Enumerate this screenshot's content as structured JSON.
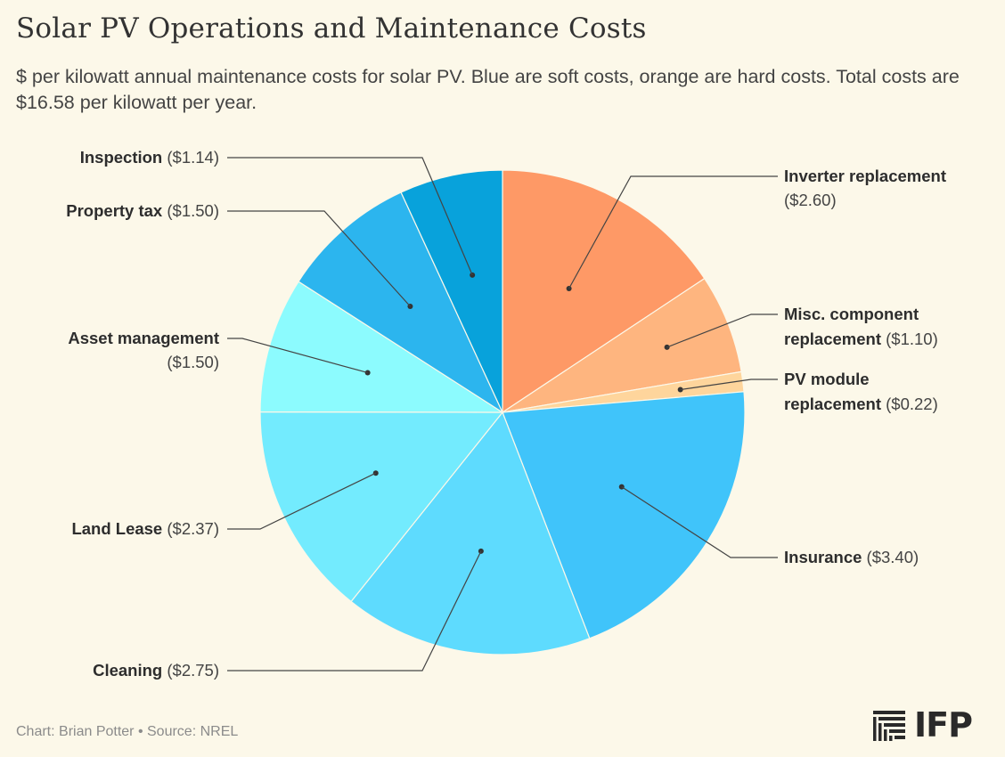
{
  "title": "Solar PV Operations and Maintenance Costs",
  "subtitle": "$ per kilowatt annual maintenance costs for solar PV. Blue are soft costs, orange are hard costs. Total costs are $16.58 per kilowatt per year.",
  "footer": {
    "credit": "Chart: Brian Potter • Source: NREL"
  },
  "logo": {
    "text": "IFP",
    "icon": "ifp-bars-icon"
  },
  "chart_data": {
    "type": "pie",
    "total": 16.58,
    "slices": [
      {
        "name": "Inverter replacement",
        "value": 2.6,
        "value_label": "($2.60)",
        "color": "#fe9966",
        "category": "hard"
      },
      {
        "name": "Misc. component replacement",
        "value": 1.1,
        "value_label": "($1.10)",
        "color": "#feb57f",
        "category": "hard"
      },
      {
        "name": "PV module replacement",
        "value": 0.22,
        "value_label": "($0.22)",
        "color": "#fed59c",
        "category": "hard"
      },
      {
        "name": "Insurance",
        "value": 3.4,
        "value_label": "($3.40)",
        "color": "#40c4fa",
        "category": "soft"
      },
      {
        "name": "Cleaning",
        "value": 2.75,
        "value_label": "($2.75)",
        "color": "#5edbfe",
        "category": "soft"
      },
      {
        "name": "Land Lease",
        "value": 2.37,
        "value_label": "($2.37)",
        "color": "#73ebfe",
        "category": "soft"
      },
      {
        "name": "Asset management",
        "value": 1.5,
        "value_label": "($1.50)",
        "color": "#8cfbfe",
        "category": "soft"
      },
      {
        "name": "Property tax",
        "value": 1.5,
        "value_label": "($1.50)",
        "color": "#2cb5ee",
        "category": "soft"
      },
      {
        "name": "Inspection",
        "value": 1.14,
        "value_label": "($1.14)",
        "color": "#08a2db",
        "category": "soft"
      }
    ]
  }
}
